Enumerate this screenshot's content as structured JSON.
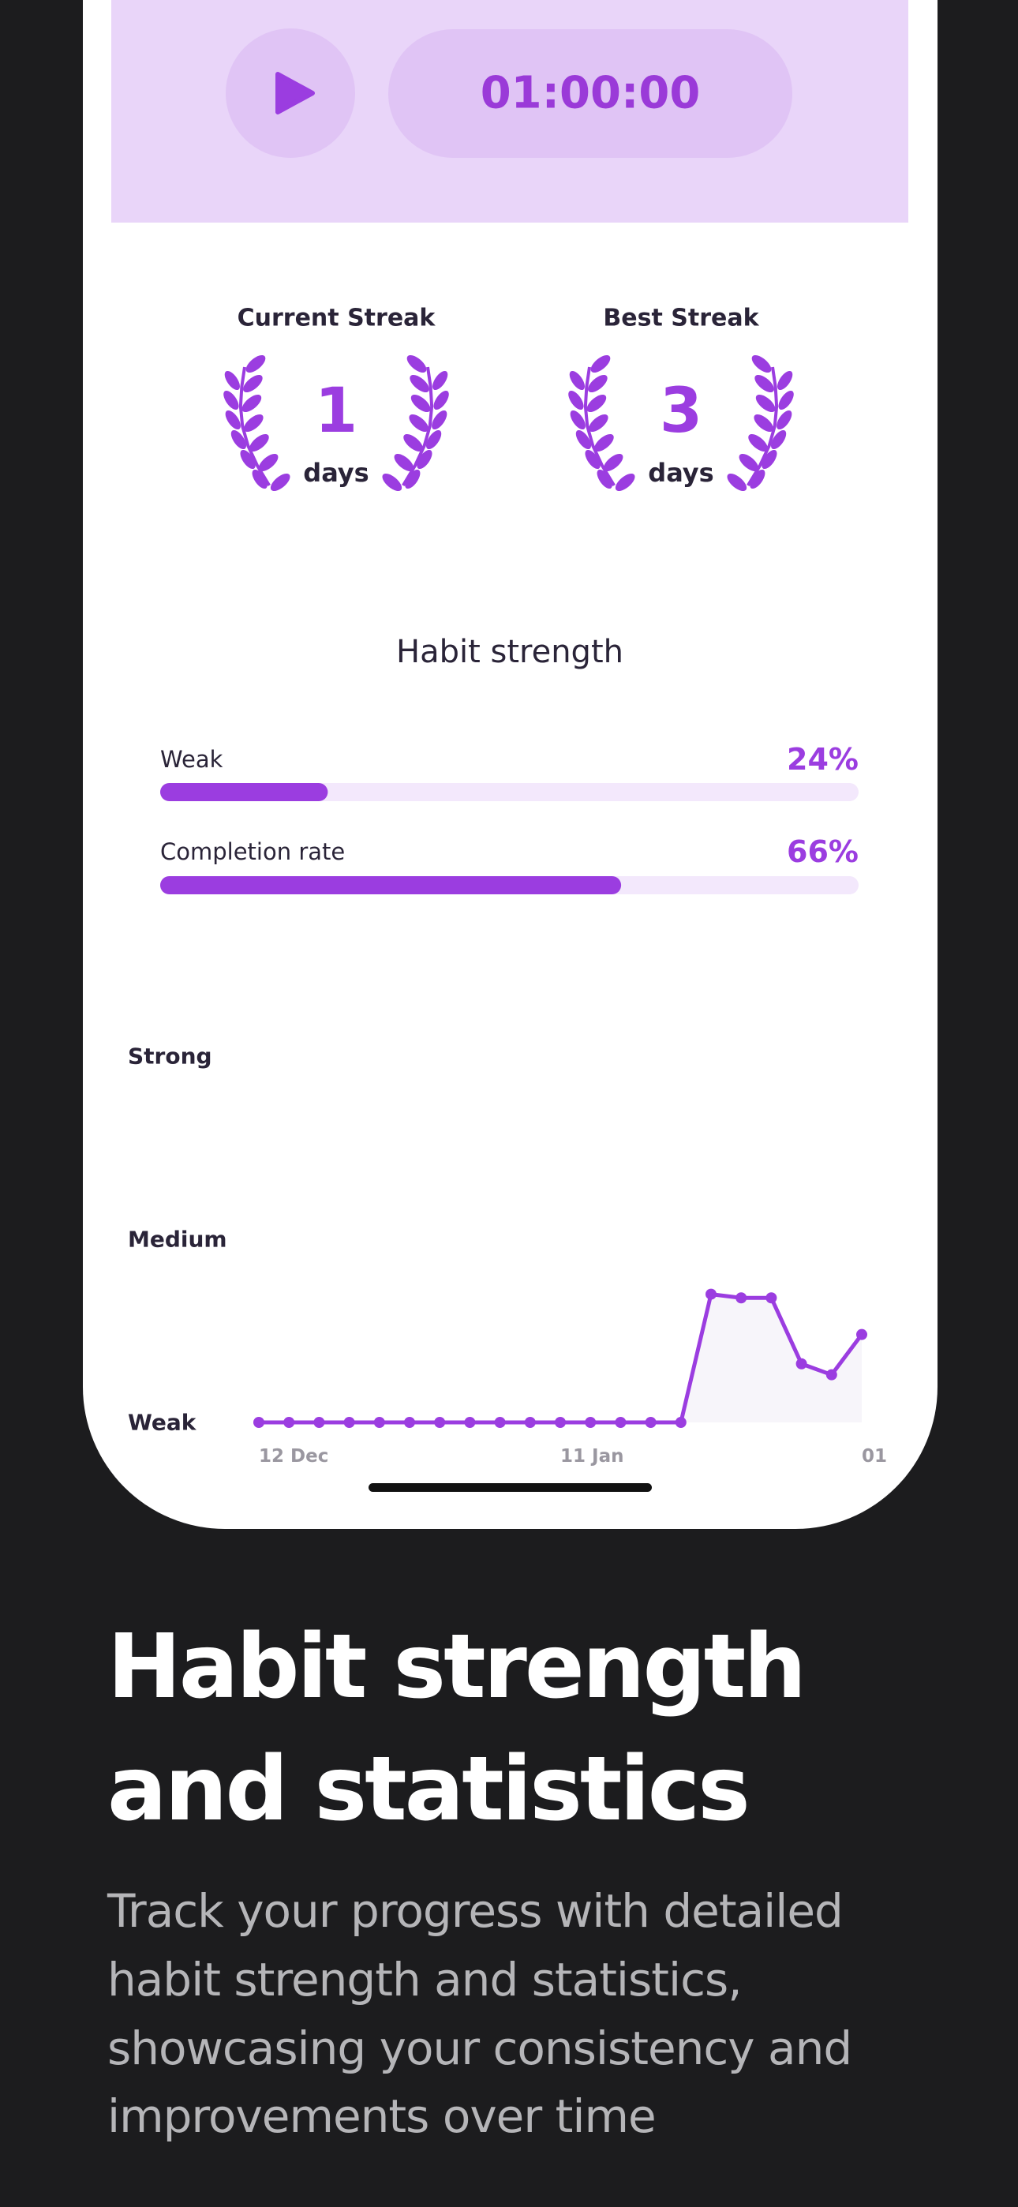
{
  "timer": "01:00:00",
  "streaks": [
    {
      "title": "Current Streak",
      "value": 1,
      "unit": "days"
    },
    {
      "title": "Best Streak",
      "value": 3,
      "unit": "days"
    }
  ],
  "habit_strength": {
    "title": "Habit strength",
    "bars": [
      {
        "label": "Weak",
        "value": 24,
        "value_label": "24%"
      },
      {
        "label": "Completion rate",
        "value": 66,
        "value_label": "66%"
      }
    ]
  },
  "chart_data": {
    "type": "line",
    "categories": [
      "12 Dec",
      null,
      null,
      null,
      null,
      null,
      null,
      null,
      null,
      null,
      "11 Jan",
      null,
      null,
      null,
      null,
      null,
      null,
      null,
      null,
      null,
      "01"
    ],
    "series": [
      {
        "color": "#9b3de0",
        "values": [
          0,
          0,
          0,
          0,
          0,
          0,
          0,
          0,
          0,
          0,
          0,
          0,
          0,
          0,
          0,
          35,
          34,
          34,
          16,
          13,
          24
        ]
      }
    ],
    "area_color": "#f7f5fa",
    "ylim": [
      0,
      100
    ],
    "yticks": [
      {
        "value": 0,
        "label": "Weak"
      },
      {
        "value": 50,
        "label": "Medium"
      },
      {
        "value": 100,
        "label": "Strong"
      }
    ]
  },
  "headline": [
    "Habit strength",
    "and statistics"
  ],
  "description": [
    "Track your progress with detailed",
    "habit strength and statistics,",
    "showcasing your consistency and",
    "improvements over time"
  ]
}
